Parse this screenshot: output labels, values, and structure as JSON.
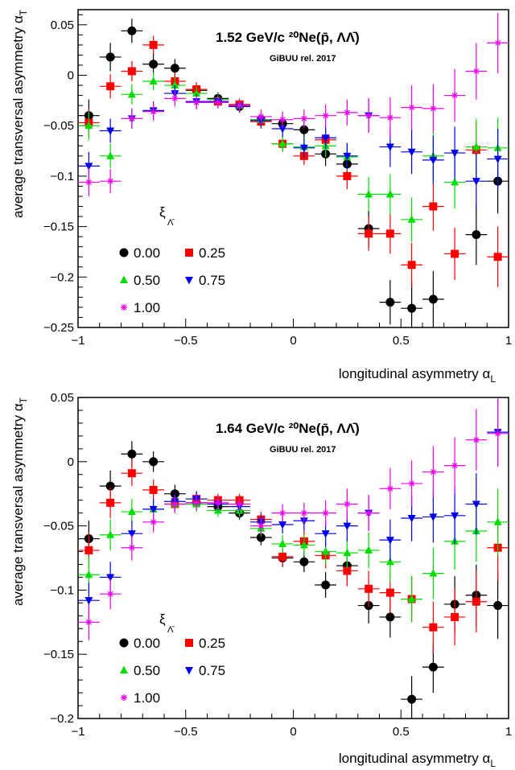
{
  "charts": [
    {
      "annotation_main": "1.52 GeV/c  ²⁰Ne(p̄,  ΛΛ̄)",
      "annotation_sub": "GiBUU rel. 2017",
      "xlabel": "longitudinal asymmetry α",
      "xlabel_sub": "L",
      "ylabel": "average transversal asymmetry α",
      "ylabel_sub": "T",
      "legend_title": "ξ",
      "legend_title_sub": "Λ̄"
    },
    {
      "annotation_main": "1.64 GeV/c  ²⁰Ne(p̄,  ΛΛ̄)",
      "annotation_sub": "GiBUU rel. 2017",
      "xlabel": "longitudinal asymmetry α",
      "xlabel_sub": "L",
      "ylabel": "average transversal asymmetry α",
      "ylabel_sub": "T",
      "legend_title": "ξ",
      "legend_title_sub": "Λ̄"
    }
  ],
  "chart_data": [
    {
      "type": "scatter",
      "xlim": [
        -1,
        1
      ],
      "ylim": [
        -0.25,
        0.065
      ],
      "x_ticks": [
        "−1",
        "−0.5",
        "0",
        "0.5",
        "1"
      ],
      "y_ticks": [
        "0.05",
        "0",
        "−0.05",
        "−0.1",
        "−0.15",
        "−0.2",
        "−0.25"
      ],
      "y_tick_values": [
        0.05,
        0,
        -0.05,
        -0.1,
        -0.15,
        -0.2,
        -0.25
      ],
      "legend_position": "bottom-left",
      "x": [
        -0.95,
        -0.85,
        -0.75,
        -0.65,
        -0.55,
        -0.45,
        -0.35,
        -0.25,
        -0.15,
        -0.05,
        0.05,
        0.15,
        0.25,
        0.35,
        0.45,
        0.55,
        0.65,
        0.75,
        0.85,
        0.95
      ],
      "series": [
        {
          "name": "0.00",
          "marker": "circle",
          "color": "#000000",
          "y": [
            -0.04,
            0.018,
            0.044,
            0.011,
            0.007,
            -0.015,
            -0.023,
            -0.031,
            -0.044,
            -0.048,
            -0.054,
            -0.078,
            -0.088,
            -0.152,
            -0.225,
            -0.231,
            -0.222,
            null,
            -0.158,
            -0.105
          ],
          "err": [
            0.016,
            0.014,
            0.012,
            0.011,
            0.009,
            0.007,
            0.006,
            0.006,
            0.007,
            0.008,
            0.01,
            0.012,
            0.014,
            0.018,
            0.022,
            0.026,
            0.028,
            null,
            0.03,
            0.032
          ]
        },
        {
          "name": "0.25",
          "marker": "square",
          "color": "#ff0000",
          "y": [
            -0.047,
            -0.011,
            0.004,
            0.03,
            -0.006,
            -0.014,
            -0.026,
            -0.029,
            -0.046,
            -0.068,
            -0.08,
            -0.064,
            -0.1,
            -0.157,
            -0.157,
            -0.188,
            -0.13,
            -0.177,
            -0.074,
            -0.18
          ],
          "err": [
            0.014,
            0.012,
            0.01,
            0.009,
            0.008,
            0.007,
            0.006,
            0.006,
            0.007,
            0.008,
            0.009,
            0.011,
            0.013,
            0.017,
            0.02,
            0.022,
            0.024,
            0.026,
            0.028,
            0.03
          ]
        },
        {
          "name": "0.50",
          "marker": "triangle-up",
          "color": "#00dd00",
          "y": [
            -0.05,
            -0.08,
            -0.019,
            -0.006,
            -0.01,
            -0.018,
            -0.024,
            -0.03,
            -0.044,
            -0.068,
            -0.071,
            -0.07,
            -0.081,
            -0.118,
            -0.118,
            -0.143,
            -0.08,
            -0.106,
            -0.071,
            -0.072
          ],
          "err": [
            0.014,
            0.012,
            0.01,
            0.009,
            0.008,
            0.007,
            0.006,
            0.006,
            0.007,
            0.008,
            0.009,
            0.011,
            0.013,
            0.017,
            0.02,
            0.022,
            0.024,
            0.026,
            0.028,
            0.03
          ]
        },
        {
          "name": "0.75",
          "marker": "triangle-down",
          "color": "#0000ee",
          "y": [
            -0.09,
            -0.055,
            -0.043,
            -0.035,
            -0.018,
            -0.026,
            -0.026,
            -0.031,
            -0.045,
            -0.053,
            -0.072,
            -0.062,
            -0.08,
            -0.04,
            -0.071,
            -0.076,
            -0.084,
            -0.077,
            -0.105,
            -0.083
          ],
          "err": [
            0.014,
            0.012,
            0.01,
            0.009,
            0.008,
            0.007,
            0.006,
            0.006,
            0.007,
            0.008,
            0.009,
            0.011,
            0.013,
            0.017,
            0.02,
            0.022,
            0.024,
            0.026,
            0.028,
            0.03
          ]
        },
        {
          "name": "1.00",
          "marker": "star",
          "color": "#ee00ee",
          "y": [
            -0.106,
            -0.105,
            -0.043,
            -0.036,
            -0.023,
            -0.027,
            -0.027,
            -0.03,
            -0.041,
            -0.044,
            -0.043,
            -0.04,
            -0.037,
            -0.04,
            -0.042,
            -0.032,
            -0.033,
            -0.02,
            0.004,
            0.032
          ],
          "err": [
            0.014,
            0.012,
            0.01,
            0.009,
            0.008,
            0.007,
            0.006,
            0.006,
            0.007,
            0.008,
            0.009,
            0.011,
            0.013,
            0.017,
            0.02,
            0.022,
            0.024,
            0.026,
            0.028,
            0.03
          ]
        }
      ]
    },
    {
      "type": "scatter",
      "xlim": [
        -1,
        1
      ],
      "ylim": [
        -0.2,
        0.05
      ],
      "x_ticks": [
        "−1",
        "−0.5",
        "0",
        "0.5",
        "1"
      ],
      "y_ticks": [
        "0.05",
        "0",
        "−0.05",
        "−0.1",
        "−0.15",
        "−0.2"
      ],
      "y_tick_values": [
        0.05,
        0,
        -0.05,
        -0.1,
        -0.15,
        -0.2
      ],
      "legend_position": "bottom-left",
      "x": [
        -0.95,
        -0.85,
        -0.75,
        -0.65,
        -0.55,
        -0.45,
        -0.35,
        -0.25,
        -0.15,
        -0.05,
        0.05,
        0.15,
        0.25,
        0.35,
        0.45,
        0.55,
        0.65,
        0.75,
        0.85,
        0.95
      ],
      "series": [
        {
          "name": "0.00",
          "marker": "circle",
          "color": "#000000",
          "y": [
            -0.06,
            -0.019,
            0.006,
            0.0,
            -0.025,
            -0.032,
            -0.035,
            -0.04,
            -0.059,
            -0.075,
            -0.078,
            -0.096,
            -0.081,
            -0.112,
            -0.121,
            -0.185,
            -0.16,
            -0.111,
            -0.104,
            -0.112
          ],
          "err": [
            0.014,
            0.012,
            0.01,
            0.008,
            0.007,
            0.006,
            0.005,
            0.005,
            0.006,
            0.007,
            0.008,
            0.01,
            0.012,
            0.014,
            0.016,
            0.018,
            0.02,
            0.022,
            0.024,
            0.026
          ]
        },
        {
          "name": "0.25",
          "marker": "square",
          "color": "#ff0000",
          "y": [
            -0.069,
            -0.032,
            -0.009,
            -0.022,
            -0.033,
            -0.029,
            -0.03,
            -0.03,
            -0.045,
            -0.074,
            -0.062,
            -0.073,
            -0.085,
            -0.099,
            -0.102,
            -0.107,
            -0.129,
            -0.121,
            -0.109,
            -0.067
          ],
          "err": [
            0.014,
            0.012,
            0.01,
            0.008,
            0.007,
            0.006,
            0.005,
            0.005,
            0.006,
            0.007,
            0.008,
            0.01,
            0.012,
            0.014,
            0.016,
            0.018,
            0.02,
            0.022,
            0.024,
            0.026
          ]
        },
        {
          "name": "0.50",
          "marker": "triangle-up",
          "color": "#00dd00",
          "y": [
            -0.088,
            -0.057,
            -0.039,
            -0.037,
            -0.033,
            -0.033,
            -0.038,
            -0.038,
            -0.052,
            -0.064,
            -0.065,
            -0.07,
            -0.071,
            -0.069,
            -0.078,
            -0.107,
            -0.087,
            -0.062,
            -0.054,
            -0.047
          ],
          "err": [
            0.014,
            0.012,
            0.01,
            0.008,
            0.007,
            0.006,
            0.005,
            0.005,
            0.006,
            0.007,
            0.008,
            0.01,
            0.012,
            0.014,
            0.016,
            0.018,
            0.02,
            0.022,
            0.024,
            0.026
          ]
        },
        {
          "name": "0.75",
          "marker": "triangle-down",
          "color": "#0000ee",
          "y": [
            -0.108,
            -0.09,
            -0.056,
            -0.037,
            -0.031,
            -0.029,
            -0.033,
            -0.035,
            -0.047,
            -0.049,
            -0.046,
            -0.056,
            -0.05,
            -0.04,
            -0.061,
            -0.044,
            -0.043,
            -0.042,
            -0.033,
            0.023
          ],
          "err": [
            0.014,
            0.012,
            0.01,
            0.008,
            0.007,
            0.006,
            0.005,
            0.005,
            0.006,
            0.007,
            0.008,
            0.01,
            0.012,
            0.014,
            0.016,
            0.018,
            0.02,
            0.022,
            0.024,
            0.026
          ]
        },
        {
          "name": "1.00",
          "marker": "star",
          "color": "#ee00ee",
          "y": [
            -0.125,
            -0.103,
            -0.067,
            -0.047,
            -0.033,
            -0.032,
            -0.032,
            -0.033,
            -0.05,
            -0.04,
            -0.04,
            -0.04,
            -0.033,
            -0.04,
            -0.021,
            -0.017,
            -0.008,
            -0.003,
            0.017,
            0.022
          ],
          "err": [
            0.014,
            0.012,
            0.01,
            0.008,
            0.007,
            0.006,
            0.005,
            0.005,
            0.006,
            0.007,
            0.008,
            0.01,
            0.012,
            0.014,
            0.016,
            0.018,
            0.02,
            0.022,
            0.024,
            0.026
          ]
        }
      ]
    }
  ]
}
